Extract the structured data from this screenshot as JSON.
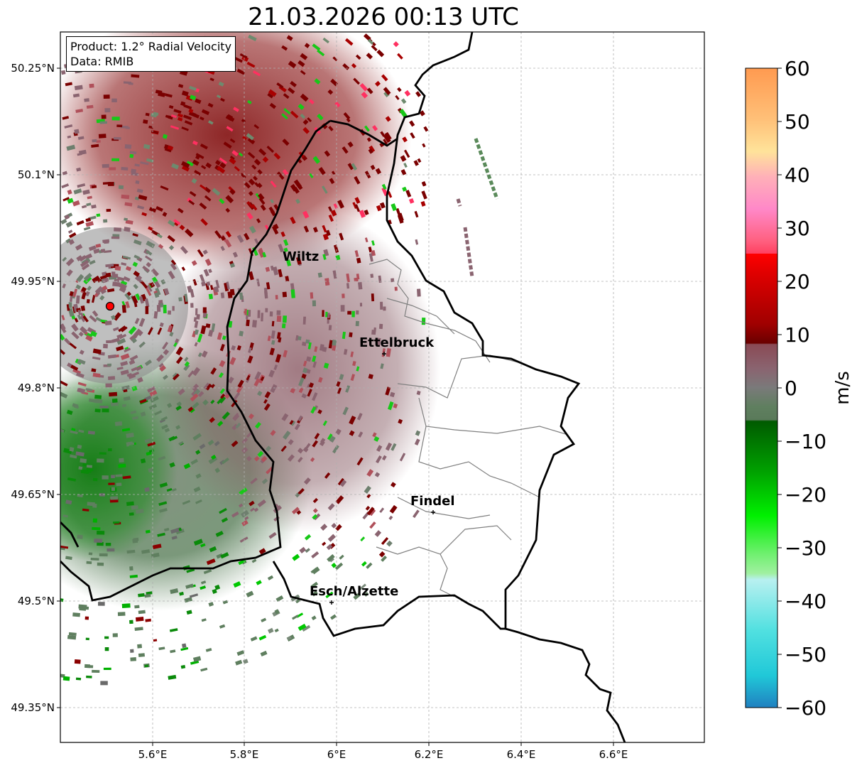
{
  "title": "21.03.2026 00:13 UTC",
  "info": {
    "product": "Product: 1.2° Radial Velocity",
    "data": "Data: RMIB"
  },
  "axes": {
    "lat_ticks": [
      "50.25°N",
      "50.1°N",
      "49.95°N",
      "49.8°N",
      "49.65°N",
      "49.5°N",
      "49.35°N"
    ],
    "lon_ticks": [
      "5.6°E",
      "5.8°E",
      "6°E",
      "6.2°E",
      "6.4°E",
      "6.6°E"
    ]
  },
  "cities": [
    {
      "name": "Wiltz"
    },
    {
      "name": "Ettelbruck"
    },
    {
      "name": "Findel"
    },
    {
      "name": "Esch/Alzette"
    }
  ],
  "colorbar": {
    "label": "m/s",
    "ticks": [
      "60",
      "50",
      "40",
      "30",
      "20",
      "10",
      "0",
      "−10",
      "−20",
      "−30",
      "−40",
      "−50",
      "−60"
    ],
    "range": [
      -60,
      60
    ]
  },
  "colors": {
    "inbound_strong": "#006400",
    "inbound": "#00c800",
    "neutral": "#7a7a7a",
    "outbound": "#8b0000",
    "outbound_strong": "#e00000",
    "radar_site": "#ff0000"
  }
}
